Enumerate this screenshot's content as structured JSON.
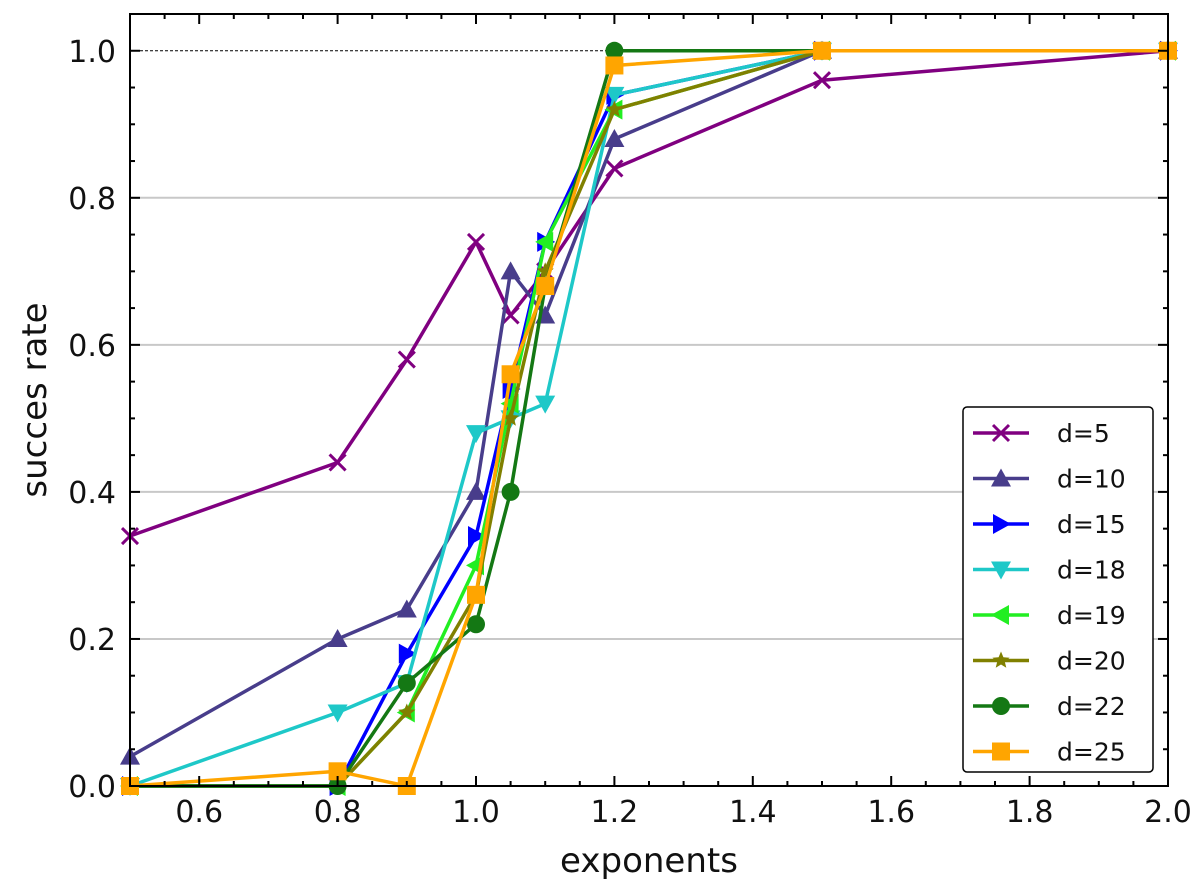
{
  "chart_data": {
    "type": "line",
    "title": "",
    "xlabel": "exponents",
    "ylabel": "succes rate",
    "xlim": [
      0.5,
      2.0
    ],
    "ylim": [
      0.0,
      1.05
    ],
    "x_ticks": [
      "0.6",
      "0.8",
      "1.0",
      "1.2",
      "1.4",
      "1.6",
      "1.8",
      "2.0"
    ],
    "y_ticks": [
      "0.0",
      "0.2",
      "0.4",
      "0.6",
      "0.8",
      "1.0"
    ],
    "grid": "horizontal",
    "legend_position": "bottom-right",
    "reference_line": 1.0,
    "series": [
      {
        "name": "d=5",
        "color": "#800080",
        "marker": "x",
        "x": [
          0.5,
          0.8,
          0.9,
          1.0,
          1.05,
          1.1,
          1.2,
          1.5,
          2.0
        ],
        "y": [
          0.34,
          0.44,
          0.58,
          0.74,
          0.64,
          0.7,
          0.84,
          0.96,
          1.0
        ]
      },
      {
        "name": "d=10",
        "color": "#483d8b",
        "marker": "triangle-up",
        "x": [
          0.5,
          0.8,
          0.9,
          1.0,
          1.05,
          1.1,
          1.2,
          1.5,
          2.0
        ],
        "y": [
          0.04,
          0.2,
          0.24,
          0.4,
          0.7,
          0.64,
          0.88,
          1.0,
          1.0
        ]
      },
      {
        "name": "d=15",
        "color": "#0000ff",
        "marker": "triangle-right",
        "x": [
          0.5,
          0.8,
          0.9,
          1.0,
          1.05,
          1.1,
          1.2,
          1.5,
          2.0
        ],
        "y": [
          0.0,
          0.0,
          0.18,
          0.34,
          0.54,
          0.74,
          0.94,
          1.0,
          1.0
        ]
      },
      {
        "name": "d=18",
        "color": "#1ec8c8",
        "marker": "triangle-down",
        "x": [
          0.5,
          0.8,
          0.9,
          1.0,
          1.05,
          1.1,
          1.2,
          1.5,
          2.0
        ],
        "y": [
          0.0,
          0.1,
          0.14,
          0.48,
          0.5,
          0.52,
          0.94,
          1.0,
          1.0
        ]
      },
      {
        "name": "d=19",
        "color": "#22ee22",
        "marker": "triangle-left",
        "x": [
          0.5,
          0.8,
          0.9,
          1.0,
          1.05,
          1.1,
          1.2,
          1.5,
          2.0
        ],
        "y": [
          0.0,
          0.0,
          0.1,
          0.3,
          0.52,
          0.74,
          0.92,
          1.0,
          1.0
        ]
      },
      {
        "name": "d=20",
        "color": "#808000",
        "marker": "star",
        "x": [
          0.5,
          0.8,
          0.9,
          1.0,
          1.05,
          1.1,
          1.2,
          1.5,
          2.0
        ],
        "y": [
          0.0,
          0.0,
          0.1,
          0.26,
          0.5,
          0.7,
          0.92,
          1.0,
          1.0
        ]
      },
      {
        "name": "d=22",
        "color": "#147814",
        "marker": "circle",
        "x": [
          0.5,
          0.8,
          0.9,
          1.0,
          1.05,
          1.1,
          1.2,
          1.5,
          2.0
        ],
        "y": [
          0.0,
          0.0,
          0.14,
          0.22,
          0.4,
          0.68,
          1.0,
          1.0,
          1.0
        ]
      },
      {
        "name": "d=25",
        "color": "#ffa500",
        "marker": "square",
        "x": [
          0.5,
          0.8,
          0.9,
          1.0,
          1.05,
          1.1,
          1.2,
          1.5,
          2.0
        ],
        "y": [
          0.0,
          0.02,
          0.0,
          0.26,
          0.56,
          0.68,
          0.98,
          1.0,
          1.0
        ]
      }
    ]
  }
}
